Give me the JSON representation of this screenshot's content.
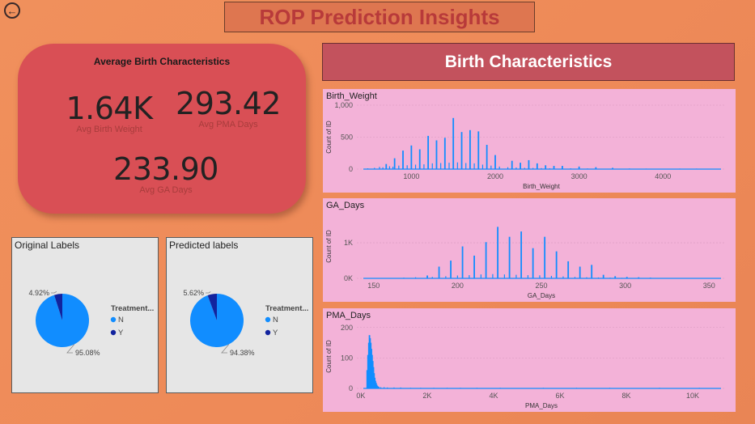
{
  "page": {
    "title": "ROP Prediction Insights",
    "back_icon": "back-arrow-icon"
  },
  "kpis": {
    "heading": "Average Birth Characteristics",
    "items": [
      {
        "value": "1.64K",
        "label": "Avg Birth Weight"
      },
      {
        "value": "293.42",
        "label": "Avg PMA Days"
      },
      {
        "value": "233.90",
        "label": "Avg GA Days"
      }
    ]
  },
  "banner": {
    "title": "Birth Characteristics"
  },
  "colors": {
    "primary": "#118dff",
    "dark": "#12239e",
    "card": "#d94f55",
    "hist_bg": "#f3b2d8"
  },
  "chart_data": [
    {
      "type": "pie",
      "title": "Original Labels",
      "legend": {
        "title": "Treatment...",
        "position": "right"
      },
      "slices": [
        {
          "name": "N",
          "value": 95.08,
          "label": "95.08%"
        },
        {
          "name": "Y",
          "value": 4.92,
          "label": "4.92%"
        }
      ]
    },
    {
      "type": "pie",
      "title": "Predicted labels",
      "legend": {
        "title": "Treatment...",
        "position": "right"
      },
      "slices": [
        {
          "name": "N",
          "value": 94.38,
          "label": "94.38%"
        },
        {
          "name": "Y",
          "value": 5.62,
          "label": "5.62%"
        }
      ]
    },
    {
      "type": "bar",
      "title": "Birth_Weight",
      "xlabel": "Birth_Weight",
      "ylabel": "Count of ID",
      "xlim": [
        350,
        4750
      ],
      "ylim": [
        0,
        1000
      ],
      "xticks": [
        {
          "v": 1000,
          "t": "1000"
        },
        {
          "v": 2000,
          "t": "2000"
        },
        {
          "v": 3000,
          "t": "3000"
        },
        {
          "v": 4000,
          "t": "4000"
        }
      ],
      "yticks": [
        {
          "v": 0,
          "t": "0"
        },
        {
          "v": 500,
          "t": "500"
        },
        {
          "v": 1000,
          "t": "1,000"
        }
      ],
      "bars": [
        {
          "x": 700,
          "y": 80
        },
        {
          "x": 800,
          "y": 170
        },
        {
          "x": 900,
          "y": 290
        },
        {
          "x": 1000,
          "y": 370
        },
        {
          "x": 1100,
          "y": 310
        },
        {
          "x": 1200,
          "y": 520
        },
        {
          "x": 1300,
          "y": 450
        },
        {
          "x": 1400,
          "y": 490
        },
        {
          "x": 1500,
          "y": 800
        },
        {
          "x": 1600,
          "y": 580
        },
        {
          "x": 1700,
          "y": 610
        },
        {
          "x": 1800,
          "y": 590
        },
        {
          "x": 1900,
          "y": 380
        },
        {
          "x": 2000,
          "y": 220
        },
        {
          "x": 2200,
          "y": 130
        },
        {
          "x": 2300,
          "y": 100
        },
        {
          "x": 2400,
          "y": 140
        },
        {
          "x": 2500,
          "y": 90
        },
        {
          "x": 2600,
          "y": 60
        },
        {
          "x": 2700,
          "y": 50
        },
        {
          "x": 2800,
          "y": 50
        },
        {
          "x": 3000,
          "y": 40
        },
        {
          "x": 3200,
          "y": 30
        },
        {
          "x": 3400,
          "y": 20
        }
      ],
      "noise": [
        {
          "x": 480,
          "y": 12
        },
        {
          "x": 560,
          "y": 20
        },
        {
          "x": 620,
          "y": 35
        },
        {
          "x": 660,
          "y": 28
        },
        {
          "x": 740,
          "y": 45
        },
        {
          "x": 780,
          "y": 38
        },
        {
          "x": 850,
          "y": 55
        },
        {
          "x": 950,
          "y": 60
        },
        {
          "x": 1050,
          "y": 70
        },
        {
          "x": 1150,
          "y": 75
        },
        {
          "x": 1250,
          "y": 90
        },
        {
          "x": 1350,
          "y": 95
        },
        {
          "x": 1450,
          "y": 100
        },
        {
          "x": 1550,
          "y": 105
        },
        {
          "x": 1650,
          "y": 95
        },
        {
          "x": 1750,
          "y": 90
        },
        {
          "x": 1850,
          "y": 70
        },
        {
          "x": 1950,
          "y": 55
        },
        {
          "x": 2050,
          "y": 40
        },
        {
          "x": 2150,
          "y": 30
        },
        {
          "x": 2250,
          "y": 25
        },
        {
          "x": 2350,
          "y": 20
        },
        {
          "x": 2450,
          "y": 18
        },
        {
          "x": 2550,
          "y": 15
        },
        {
          "x": 2650,
          "y": 12
        },
        {
          "x": 2900,
          "y": 12
        },
        {
          "x": 3100,
          "y": 10
        },
        {
          "x": 3600,
          "y": 10
        },
        {
          "x": 3800,
          "y": 8
        },
        {
          "x": 4200,
          "y": 8
        },
        {
          "x": 4400,
          "y": 8
        },
        {
          "x": 4600,
          "y": 6
        }
      ]
    },
    {
      "type": "bar",
      "title": "GA_Days",
      "xlabel": "GA_Days",
      "ylabel": "Count of ID",
      "xlim": [
        140,
        360
      ],
      "ylim": [
        0,
        1800
      ],
      "xticks": [
        {
          "v": 150,
          "t": "150"
        },
        {
          "v": 200,
          "t": "200"
        },
        {
          "v": 250,
          "t": "250"
        },
        {
          "v": 300,
          "t": "300"
        },
        {
          "v": 350,
          "t": "350"
        }
      ],
      "yticks": [
        {
          "v": 0,
          "t": "0K"
        },
        {
          "v": 1000,
          "t": "1K"
        }
      ],
      "bars": [
        {
          "x": 182,
          "y": 80
        },
        {
          "x": 189,
          "y": 330
        },
        {
          "x": 196,
          "y": 500
        },
        {
          "x": 203,
          "y": 900
        },
        {
          "x": 210,
          "y": 640
        },
        {
          "x": 217,
          "y": 1020
        },
        {
          "x": 224,
          "y": 1450
        },
        {
          "x": 231,
          "y": 1170
        },
        {
          "x": 238,
          "y": 1320
        },
        {
          "x": 245,
          "y": 850
        },
        {
          "x": 252,
          "y": 1170
        },
        {
          "x": 259,
          "y": 760
        },
        {
          "x": 266,
          "y": 480
        },
        {
          "x": 273,
          "y": 330
        },
        {
          "x": 280,
          "y": 380
        },
        {
          "x": 287,
          "y": 100
        },
        {
          "x": 294,
          "y": 60
        },
        {
          "x": 301,
          "y": 40
        },
        {
          "x": 308,
          "y": 30
        },
        {
          "x": 315,
          "y": 20
        }
      ],
      "noise": [
        {
          "x": 160,
          "y": 12
        },
        {
          "x": 168,
          "y": 20
        },
        {
          "x": 175,
          "y": 30
        },
        {
          "x": 185,
          "y": 40
        },
        {
          "x": 193,
          "y": 60
        },
        {
          "x": 200,
          "y": 80
        },
        {
          "x": 207,
          "y": 90
        },
        {
          "x": 214,
          "y": 110
        },
        {
          "x": 221,
          "y": 120
        },
        {
          "x": 228,
          "y": 110
        },
        {
          "x": 235,
          "y": 100
        },
        {
          "x": 242,
          "y": 90
        },
        {
          "x": 249,
          "y": 85
        },
        {
          "x": 256,
          "y": 70
        },
        {
          "x": 263,
          "y": 55
        },
        {
          "x": 270,
          "y": 40
        },
        {
          "x": 277,
          "y": 30
        },
        {
          "x": 284,
          "y": 25
        },
        {
          "x": 291,
          "y": 20
        },
        {
          "x": 298,
          "y": 15
        },
        {
          "x": 320,
          "y": 10
        },
        {
          "x": 340,
          "y": 8
        }
      ]
    },
    {
      "type": "bar",
      "title": "PMA_Days",
      "xlabel": "PMA_Days",
      "ylabel": "Count of ID",
      "xlim": [
        -120,
        11000
      ],
      "ylim": [
        0,
        210
      ],
      "xticks": [
        {
          "v": 0,
          "t": "0K"
        },
        {
          "v": 2000,
          "t": "2K"
        },
        {
          "v": 4000,
          "t": "4K"
        },
        {
          "v": 6000,
          "t": "6K"
        },
        {
          "v": 8000,
          "t": "8K"
        },
        {
          "v": 10000,
          "t": "10K"
        }
      ],
      "yticks": [
        {
          "v": 0,
          "t": "0"
        },
        {
          "v": 100,
          "t": "100"
        },
        {
          "v": 200,
          "t": "200"
        }
      ],
      "bars": [
        {
          "x": 190,
          "y": 60
        },
        {
          "x": 215,
          "y": 110
        },
        {
          "x": 240,
          "y": 150
        },
        {
          "x": 260,
          "y": 175
        },
        {
          "x": 280,
          "y": 165
        },
        {
          "x": 300,
          "y": 150
        },
        {
          "x": 320,
          "y": 130
        },
        {
          "x": 340,
          "y": 110
        },
        {
          "x": 360,
          "y": 90
        },
        {
          "x": 380,
          "y": 70
        },
        {
          "x": 400,
          "y": 50
        },
        {
          "x": 420,
          "y": 35
        },
        {
          "x": 440,
          "y": 25
        },
        {
          "x": 460,
          "y": 18
        },
        {
          "x": 480,
          "y": 12
        },
        {
          "x": 500,
          "y": 8
        },
        {
          "x": 520,
          "y": 6
        },
        {
          "x": 540,
          "y": 5
        }
      ],
      "noise": [
        {
          "x": 600,
          "y": 4
        },
        {
          "x": 700,
          "y": 4
        },
        {
          "x": 800,
          "y": 3
        },
        {
          "x": 1000,
          "y": 3
        },
        {
          "x": 1200,
          "y": 3
        },
        {
          "x": 1500,
          "y": 2
        },
        {
          "x": 1800,
          "y": 2
        },
        {
          "x": 2200,
          "y": 2
        },
        {
          "x": 2600,
          "y": 2
        },
        {
          "x": 3000,
          "y": 2
        },
        {
          "x": 3500,
          "y": 2
        },
        {
          "x": 4200,
          "y": 2
        },
        {
          "x": 5500,
          "y": 2
        },
        {
          "x": 6500,
          "y": 2
        },
        {
          "x": 7500,
          "y": 2
        },
        {
          "x": 9000,
          "y": 2
        },
        {
          "x": 10200,
          "y": 2
        }
      ]
    }
  ]
}
